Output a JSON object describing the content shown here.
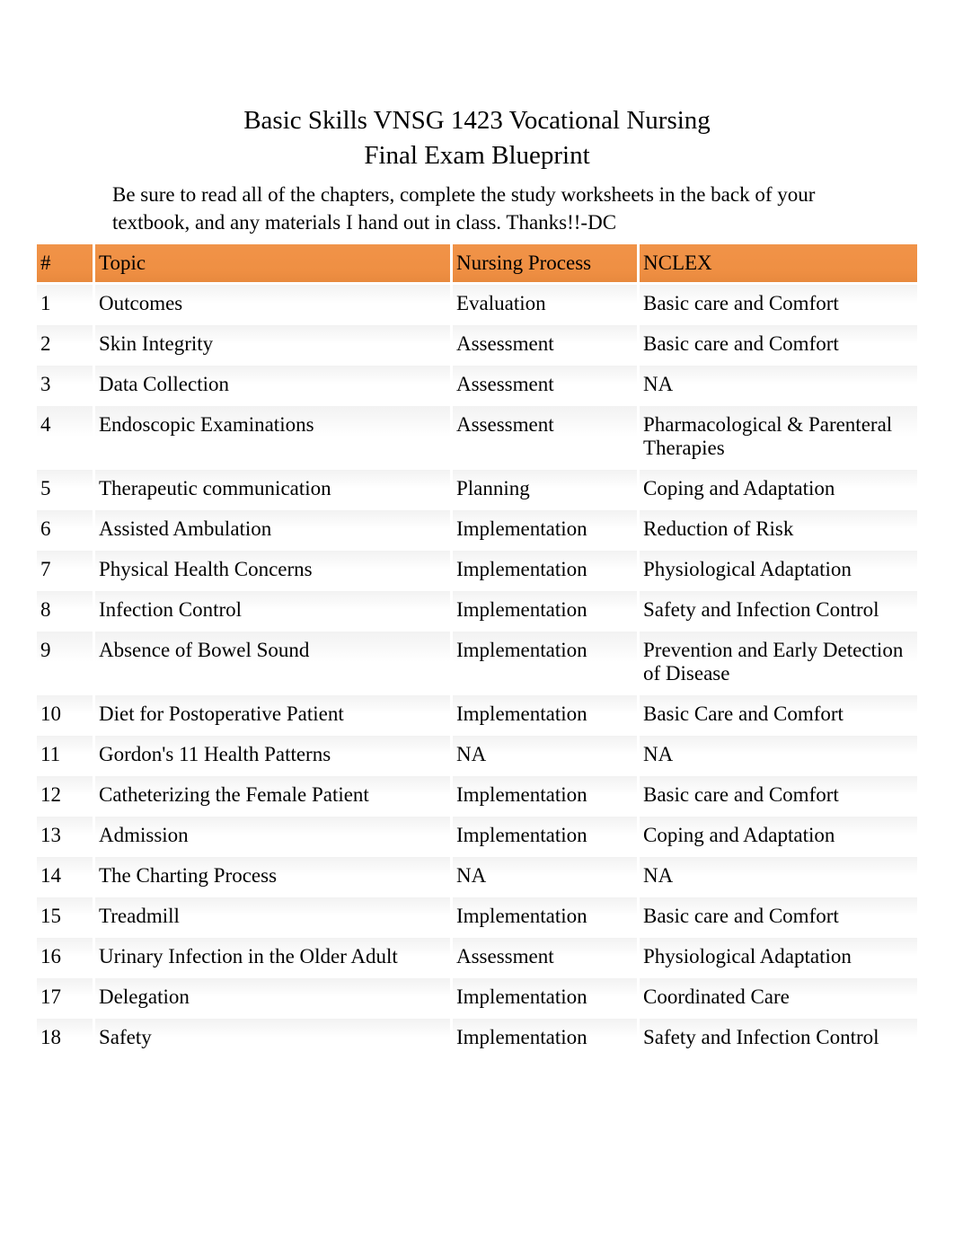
{
  "title": {
    "line1": "Basic Skills VNSG 1423 Vocational Nursing",
    "line2": "Final Exam Blueprint"
  },
  "instructions": "Be sure to read all of the chapters, complete the study worksheets in the back of your textbook, and any materials I hand out in class. Thanks!!-DC",
  "table": {
    "header_bg_color": "#ef8f43",
    "row_bg_color": "#f7f7f7",
    "text_color": "#000000",
    "font_size_header": 23,
    "font_size_body": 23,
    "columns": [
      {
        "key": "num",
        "label": "#"
      },
      {
        "key": "topic",
        "label": "Topic"
      },
      {
        "key": "process",
        "label": "Nursing Process"
      },
      {
        "key": "nclex",
        "label": "NCLEX"
      }
    ],
    "rows": [
      {
        "num": "1",
        "topic": "Outcomes",
        "process": "Evaluation",
        "nclex": "Basic care and Comfort"
      },
      {
        "num": "2",
        "topic": "Skin Integrity",
        "process": "Assessment",
        "nclex": "Basic care and Comfort"
      },
      {
        "num": "3",
        "topic": "Data Collection",
        "process": "Assessment",
        "nclex": "NA"
      },
      {
        "num": "4",
        "topic": "Endoscopic Examinations",
        "process": "Assessment",
        "nclex": "Pharmacological & Parenteral Therapies"
      },
      {
        "num": "5",
        "topic": "Therapeutic communication",
        "process": "Planning",
        "nclex": "Coping and Adaptation"
      },
      {
        "num": "6",
        "topic": "Assisted Ambulation",
        "process": "Implementation",
        "nclex": "Reduction of Risk"
      },
      {
        "num": "7",
        "topic": "Physical Health Concerns",
        "process": "Implementation",
        "nclex": "Physiological Adaptation"
      },
      {
        "num": "8",
        "topic": "Infection Control",
        "process": "Implementation",
        "nclex": "Safety and Infection Control"
      },
      {
        "num": "9",
        "topic": "Absence of Bowel Sound",
        "process": "Implementation",
        "nclex": "Prevention and Early Detection of Disease"
      },
      {
        "num": "10",
        "topic": "Diet for Postoperative Patient",
        "process": "Implementation",
        "nclex": "Basic Care and Comfort"
      },
      {
        "num": "11",
        "topic": "Gordon's 11 Health Patterns",
        "process": "NA",
        "nclex": "NA"
      },
      {
        "num": "12",
        "topic": "Catheterizing the Female Patient",
        "process": "Implementation",
        "nclex": "Basic care and Comfort"
      },
      {
        "num": "13",
        "topic": "Admission",
        "process": "Implementation",
        "nclex": "Coping and Adaptation"
      },
      {
        "num": "14",
        "topic": "The Charting Process",
        "process": "NA",
        "nclex": "NA"
      },
      {
        "num": "15",
        "topic": "Treadmill",
        "process": "Implementation",
        "nclex": "Basic care and Comfort"
      },
      {
        "num": "16",
        "topic": "Urinary Infection in the Older Adult",
        "process": "Assessment",
        "nclex": "Physiological Adaptation"
      },
      {
        "num": "17",
        "topic": "Delegation",
        "process": "Implementation",
        "nclex": "Coordinated Care"
      },
      {
        "num": "18",
        "topic": "Safety",
        "process": "Implementation",
        "nclex": "Safety and Infection Control"
      }
    ]
  }
}
